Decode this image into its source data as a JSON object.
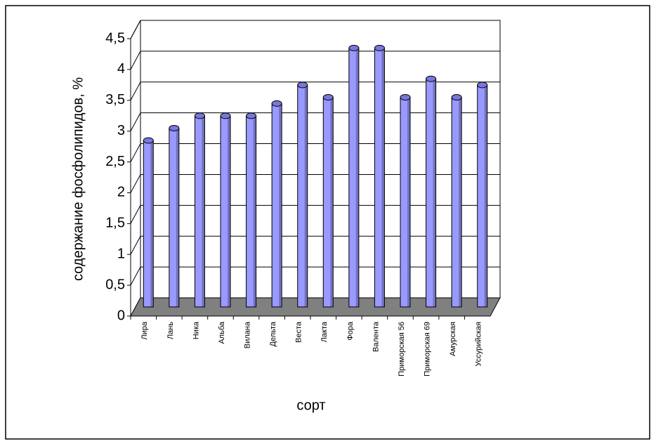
{
  "chart_data": {
    "type": "bar3d",
    "y_label": "содержание фосфолипидов, %",
    "x_label": "сорт",
    "categories": [
      "Лира",
      "Лань",
      "Ника",
      "Альба",
      "Вилана",
      "Дельта",
      "Веста",
      "Лакта",
      "Фора",
      "Валента",
      "Приморская 56",
      "Приморская 69",
      "Амурская",
      "Уссурийская"
    ],
    "values": [
      2.7,
      2.9,
      3.1,
      3.1,
      3.1,
      3.3,
      3.6,
      3.4,
      4.2,
      4.2,
      3.4,
      3.7,
      3.4,
      3.6
    ],
    "color": "#9999ff",
    "ylim": [
      0,
      4.5
    ],
    "yticks": [
      0,
      {
        "value": 0.5,
        "label": "0,5"
      },
      1,
      {
        "value": 1.5,
        "label": "1,5"
      },
      2,
      {
        "value": 2.5,
        "label": "2,5"
      },
      3,
      {
        "value": 3.5,
        "label": "3,5"
      },
      4,
      {
        "value": 4.5,
        "label": "4,5"
      }
    ],
    "grid": true
  }
}
